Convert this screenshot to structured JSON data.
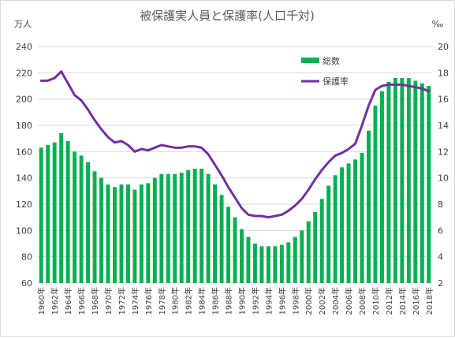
{
  "chart_data": {
    "type": "bar+line",
    "title": "被保護実人員と保護率(人口千対)",
    "y_left": {
      "unit": "万人",
      "min": 60,
      "max": 240,
      "step": 20
    },
    "y_right": {
      "unit": "‰",
      "min": 2,
      "max": 20,
      "step": 2
    },
    "x_tick_labels": [
      "1960年",
      "1962年",
      "1964年",
      "1966年",
      "1968年",
      "1970年",
      "1972年",
      "1974年",
      "1976年",
      "1978年",
      "1980年",
      "1982年",
      "1984年",
      "1986年",
      "1988年",
      "1990年",
      "1992年",
      "1994年",
      "1996年",
      "1998年",
      "2000年",
      "2002年",
      "2004年",
      "2006年",
      "2008年",
      "2010年",
      "2012年",
      "2014年",
      "2016年",
      "2018年"
    ],
    "years": [
      1960,
      1961,
      1962,
      1963,
      1964,
      1965,
      1966,
      1967,
      1968,
      1969,
      1970,
      1971,
      1972,
      1973,
      1974,
      1975,
      1976,
      1977,
      1978,
      1979,
      1980,
      1981,
      1982,
      1983,
      1984,
      1985,
      1986,
      1987,
      1988,
      1989,
      1990,
      1991,
      1992,
      1993,
      1994,
      1995,
      1996,
      1997,
      1998,
      1999,
      2000,
      2001,
      2002,
      2003,
      2004,
      2005,
      2006,
      2007,
      2008,
      2009,
      2010,
      2011,
      2012,
      2013,
      2014,
      2015,
      2016,
      2017,
      2018
    ],
    "series": [
      {
        "name": "総数",
        "type": "bar",
        "axis": "left",
        "color": "#00b050",
        "values": [
          163,
          165,
          167,
          174,
          168,
          160,
          157,
          152,
          145,
          140,
          135,
          133,
          135,
          135,
          131,
          135,
          136,
          140,
          143,
          143,
          143,
          144,
          146,
          147,
          147,
          143,
          135,
          127,
          118,
          110,
          101,
          95,
          90,
          88,
          88,
          88,
          89,
          91,
          95,
          100,
          107,
          114,
          124,
          134,
          142,
          148,
          151,
          154,
          159,
          176,
          195,
          206,
          213,
          216,
          216,
          216,
          214,
          212,
          210
        ],
        "value_labels": []
      },
      {
        "name": "保護率",
        "type": "line",
        "axis": "right",
        "color": "#7030a0",
        "values": [
          17.4,
          17.4,
          17.6,
          18.1,
          17.2,
          16.3,
          15.9,
          15.2,
          14.4,
          13.7,
          13.1,
          12.7,
          12.8,
          12.5,
          12.0,
          12.2,
          12.1,
          12.3,
          12.5,
          12.4,
          12.3,
          12.3,
          12.4,
          12.4,
          12.3,
          11.8,
          11.0,
          10.2,
          9.3,
          8.5,
          7.7,
          7.2,
          7.1,
          7.1,
          7.0,
          7.1,
          7.2,
          7.5,
          7.9,
          8.4,
          9.1,
          9.9,
          10.6,
          11.2,
          11.7,
          11.9,
          12.2,
          12.6,
          14.0,
          15.5,
          16.7,
          17.0,
          17.1,
          17.1,
          17.1,
          17.0,
          16.9,
          16.8,
          16.6
        ]
      }
    ],
    "legend": {
      "position": "top-right"
    },
    "grid": true
  }
}
